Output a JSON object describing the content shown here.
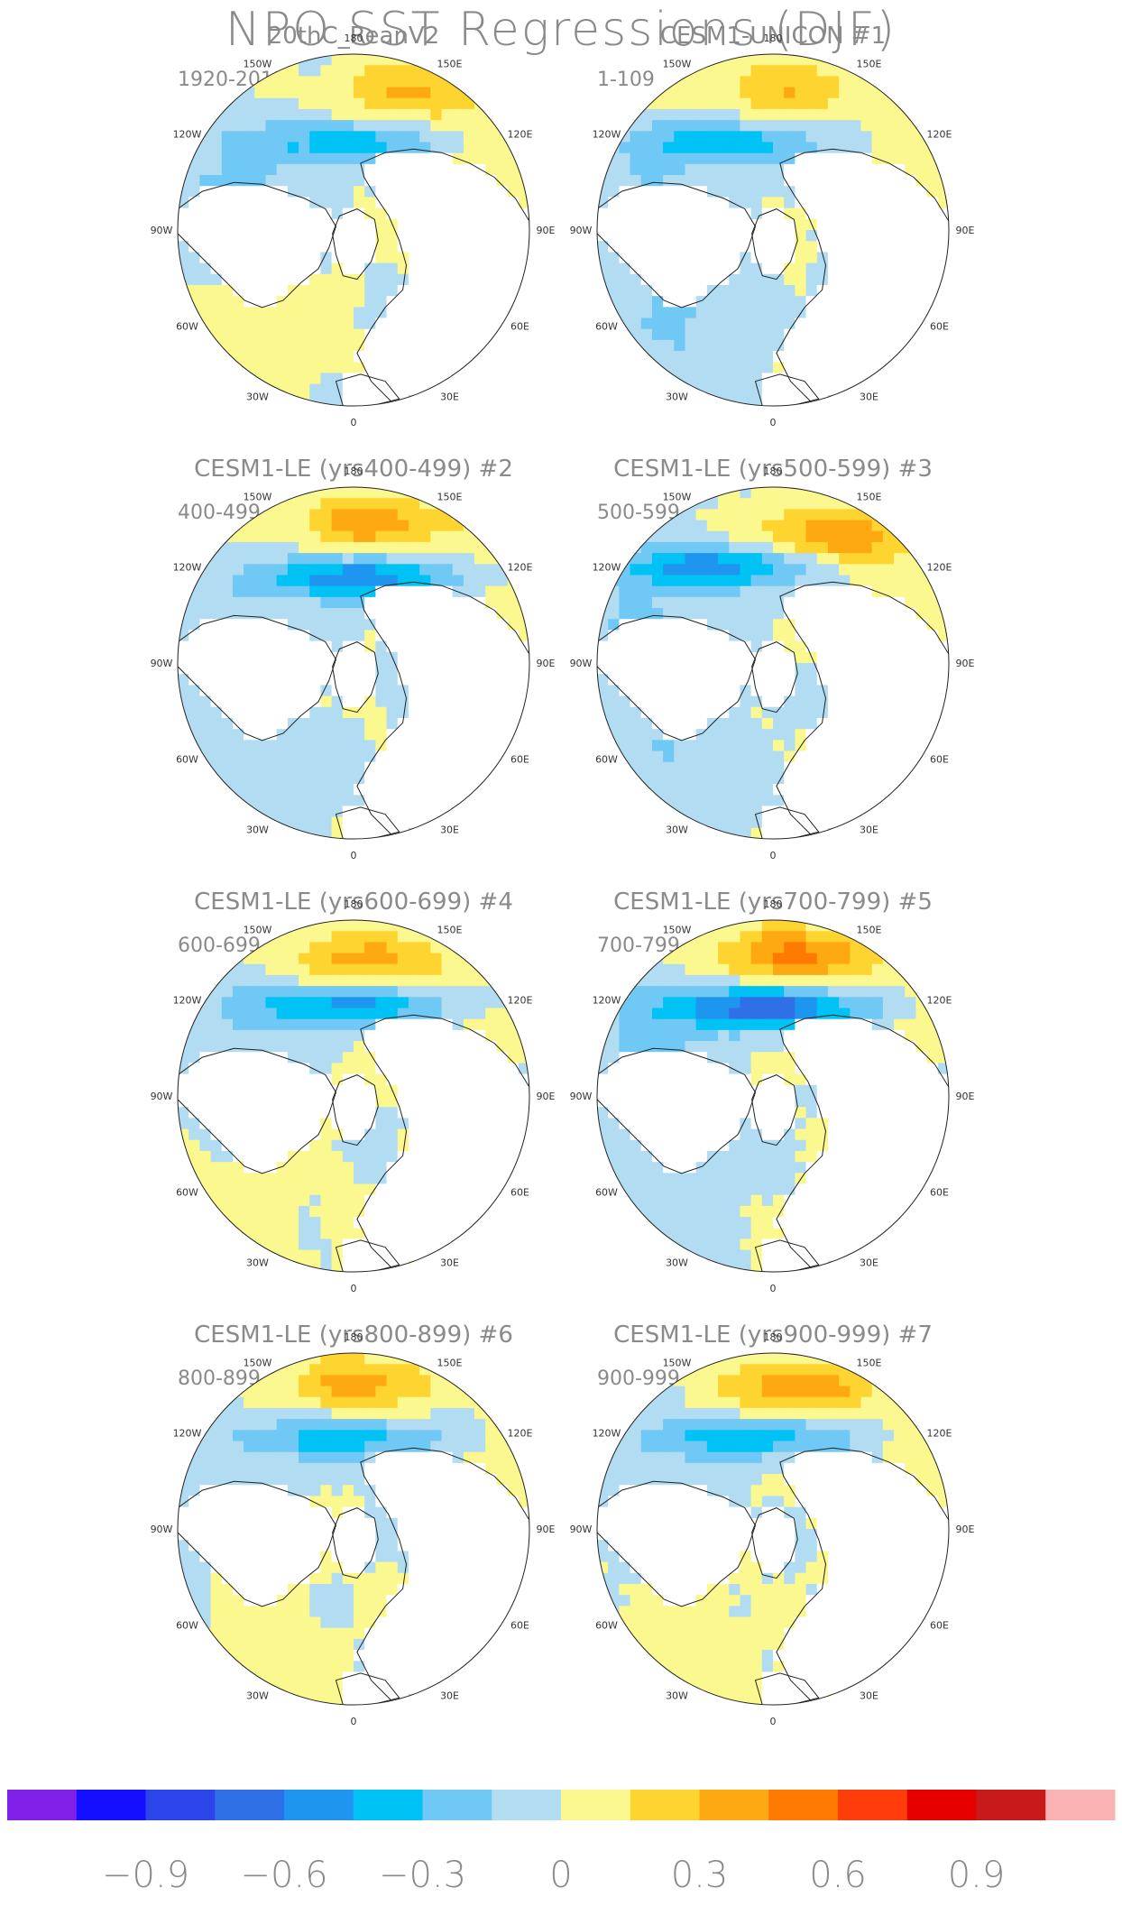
{
  "figure": {
    "title": "NPO SST Regressions (DJF)"
  },
  "panels": [
    {
      "title": "20thC_ReanV2",
      "tag": "",
      "period": "1920-2011",
      "variant": 0
    },
    {
      "title": "CESM1-UNICON",
      "tag": "#1",
      "period": "1-109",
      "variant": 1
    },
    {
      "title": "CESM1-LE (yrs400-499)",
      "tag": "#2",
      "period": "400-499",
      "variant": 2
    },
    {
      "title": "CESM1-LE (yrs500-599)",
      "tag": "#3",
      "period": "500-599",
      "variant": 3
    },
    {
      "title": "CESM1-LE (yrs600-699)",
      "tag": "#4",
      "period": "600-699",
      "variant": 4
    },
    {
      "title": "CESM1-LE (yrs700-799)",
      "tag": "#5",
      "period": "700-799",
      "variant": 5
    },
    {
      "title": "CESM1-LE (yrs800-899)",
      "tag": "#6",
      "period": "800-899",
      "variant": 6
    },
    {
      "title": "CESM1-LE (yrs900-999)",
      "tag": "#7",
      "period": "900-999",
      "variant": 7
    }
  ],
  "longitude_labels": [
    "180",
    "150E",
    "120E",
    "90E",
    "60E",
    "30E",
    "0",
    "30W",
    "60W",
    "90W",
    "120W",
    "150W"
  ],
  "colorbar": {
    "colors": [
      "#8020e8",
      "#1410ff",
      "#2c45ea",
      "#3070e6",
      "#1e96f0",
      "#00c2f5",
      "#70c8f5",
      "#b2dcf2",
      "#fcf890",
      "#fed530",
      "#fea812",
      "#fe7a00",
      "#fe3d0a",
      "#e60000",
      "#c81a1a",
      "#fab2b2"
    ],
    "tick_labels": [
      "−0.9",
      "−0.6",
      "−0.3",
      "0",
      "0.3",
      "0.6",
      "0.9"
    ]
  },
  "colors": {
    "land": "#ffffff",
    "coastline": "#222222",
    "text": "#8a8a8a"
  }
}
